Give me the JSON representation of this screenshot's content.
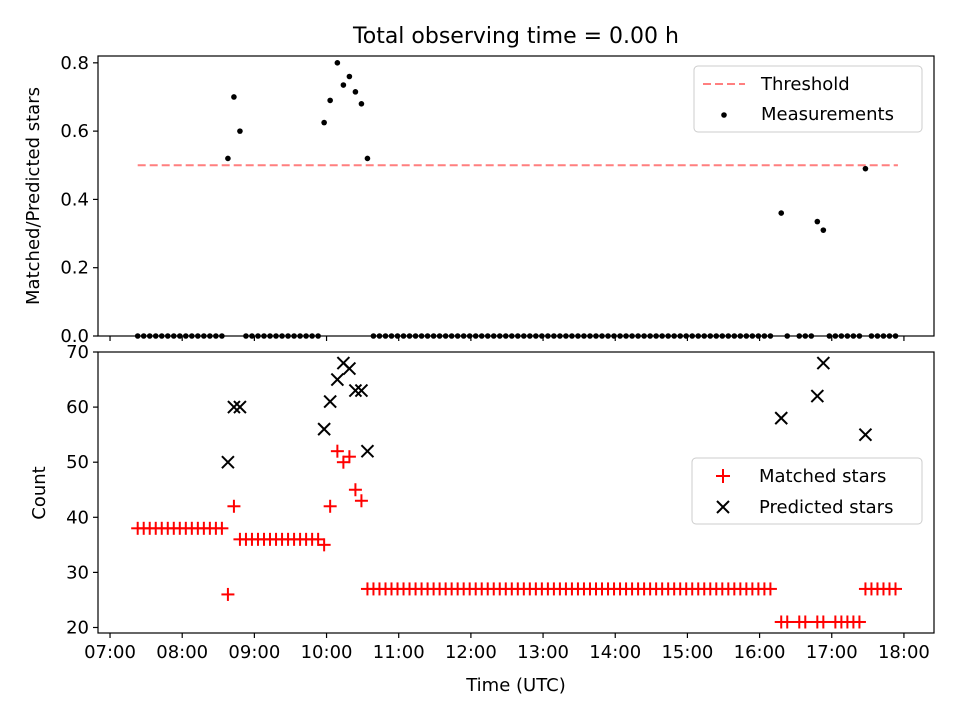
{
  "figure": {
    "title": "Total observing time = 0.00 h",
    "xlabel": "Time (UTC)",
    "x_ticks": [
      "07:00",
      "08:00",
      "09:00",
      "10:00",
      "11:00",
      "12:00",
      "13:00",
      "14:00",
      "15:00",
      "16:00",
      "17:00",
      "18:00"
    ]
  },
  "chart_data": [
    {
      "type": "scatter",
      "ylabel": "Matched/Predicted stars",
      "xlim": [
        "06:50",
        "18:25"
      ],
      "ylim": [
        0,
        0.82
      ],
      "y_ticks": [
        "0.0",
        "0.2",
        "0.4",
        "0.6",
        "0.8"
      ],
      "legend": {
        "position": "top-right",
        "entries": [
          "Threshold",
          "Measurements"
        ]
      },
      "threshold": {
        "name": "Threshold",
        "value": 0.5,
        "x_range": [
          "07:23",
          "17:55"
        ],
        "color": "#ff7f7f",
        "style": "dashed"
      },
      "series": [
        {
          "name": "Measurements",
          "color": "#000000",
          "points": [
            {
              "x": "08:38",
              "y": 0.52
            },
            {
              "x": "08:43",
              "y": 0.7
            },
            {
              "x": "08:48",
              "y": 0.6
            },
            {
              "x": "09:58",
              "y": 0.625
            },
            {
              "x": "10:03",
              "y": 0.69
            },
            {
              "x": "10:09",
              "y": 0.8
            },
            {
              "x": "10:14",
              "y": 0.735
            },
            {
              "x": "10:19",
              "y": 0.76
            },
            {
              "x": "10:24",
              "y": 0.715
            },
            {
              "x": "10:29",
              "y": 0.68
            },
            {
              "x": "10:34",
              "y": 0.52
            },
            {
              "x": "16:18",
              "y": 0.36
            },
            {
              "x": "16:48",
              "y": 0.335
            },
            {
              "x": "16:53",
              "y": 0.31
            },
            {
              "x": "17:28",
              "y": 0.49
            }
          ],
          "zero_time_ranges": [
            [
              "07:23",
              "08:33"
            ],
            [
              "08:53",
              "09:53"
            ],
            [
              "10:39",
              "16:13"
            ],
            [
              "16:23",
              "16:43"
            ],
            [
              "16:58",
              "17:23"
            ],
            [
              "17:33",
              "17:55"
            ]
          ],
          "zero_time_gaps": [
            "13:18",
            "13:48",
            "14:58",
            "15:03",
            "16:28"
          ]
        }
      ]
    },
    {
      "type": "scatter",
      "ylabel": "Count",
      "xlim": [
        "06:50",
        "18:25"
      ],
      "ylim": [
        19,
        70
      ],
      "y_ticks": [
        "20",
        "30",
        "40",
        "50",
        "60",
        "70"
      ],
      "legend": {
        "position": "center-right",
        "entries": [
          "Matched stars",
          "Predicted stars"
        ]
      },
      "series": [
        {
          "name": "Matched stars",
          "color": "#ff0000",
          "marker": "plus",
          "points": [
            {
              "x": "08:38",
              "y": 26
            },
            {
              "x": "08:43",
              "y": 42
            },
            {
              "x": "09:58",
              "y": 35
            },
            {
              "x": "10:03",
              "y": 42
            },
            {
              "x": "10:09",
              "y": 52
            },
            {
              "x": "10:14",
              "y": 50
            },
            {
              "x": "10:19",
              "y": 51
            },
            {
              "x": "10:24",
              "y": 45
            },
            {
              "x": "10:29",
              "y": 43
            }
          ],
          "constant_runs": [
            {
              "from": "07:23",
              "to": "08:33",
              "y": 38
            },
            {
              "from": "08:48",
              "to": "09:53",
              "y": 36
            },
            {
              "from": "10:34",
              "to": "16:13",
              "y": 27
            },
            {
              "from": "16:18",
              "to": "17:23",
              "y": 21
            },
            {
              "from": "17:28",
              "to": "17:55",
              "y": 27
            }
          ],
          "gaps": [
            "13:18",
            "13:48",
            "14:58",
            "15:03",
            "16:28",
            "16:43",
            "16:58"
          ]
        },
        {
          "name": "Predicted stars",
          "color": "#000000",
          "marker": "x",
          "points": [
            {
              "x": "08:38",
              "y": 50
            },
            {
              "x": "08:43",
              "y": 60
            },
            {
              "x": "08:48",
              "y": 60
            },
            {
              "x": "09:58",
              "y": 56
            },
            {
              "x": "10:03",
              "y": 61
            },
            {
              "x": "10:09",
              "y": 65
            },
            {
              "x": "10:14",
              "y": 68
            },
            {
              "x": "10:19",
              "y": 67
            },
            {
              "x": "10:24",
              "y": 63
            },
            {
              "x": "10:29",
              "y": 63
            },
            {
              "x": "10:34",
              "y": 52
            },
            {
              "x": "16:18",
              "y": 58
            },
            {
              "x": "16:48",
              "y": 62
            },
            {
              "x": "16:53",
              "y": 68
            },
            {
              "x": "17:28",
              "y": 55
            }
          ]
        }
      ]
    }
  ]
}
